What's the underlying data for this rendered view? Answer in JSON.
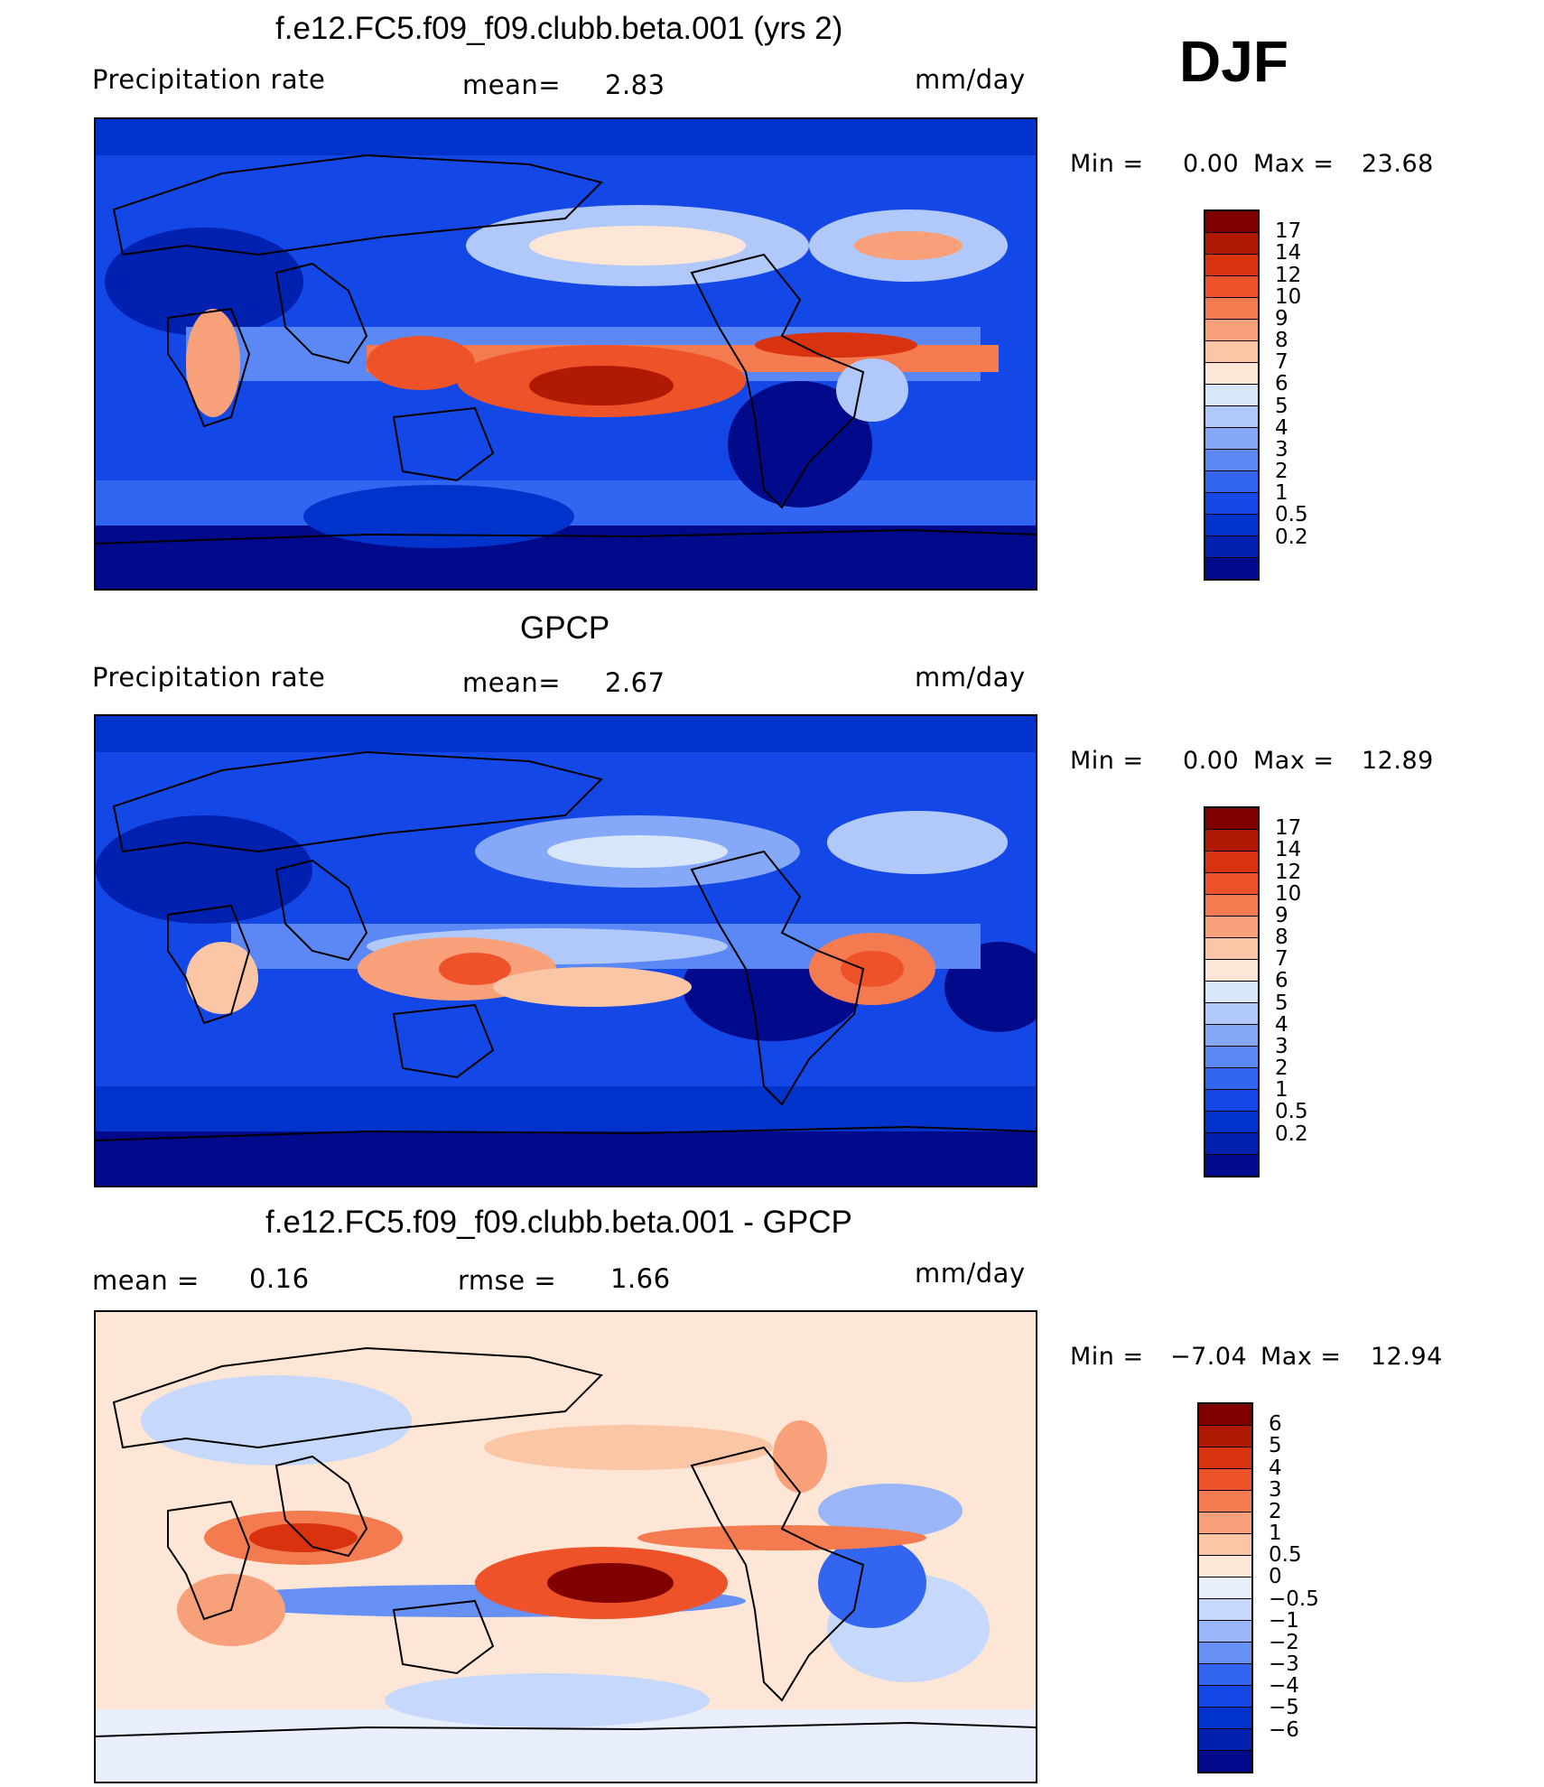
{
  "season": "DJF",
  "colors": {
    "precip": [
      "#000a8a",
      "#0020b0",
      "#0033cc",
      "#1448e6",
      "#3366f0",
      "#5c88f5",
      "#86a8f8",
      "#b0c8fa",
      "#d8e6fc",
      "#fde6d6",
      "#fbc6a6",
      "#f8a07a",
      "#f47a50",
      "#ee5228",
      "#d8320e",
      "#b01a04",
      "#800000"
    ],
    "diff": [
      "#000a8a",
      "#0020b0",
      "#0033cc",
      "#1448e6",
      "#3366f0",
      "#6690f4",
      "#9ab6f8",
      "#c6d8fb",
      "#e8eefc",
      "#fde6d6",
      "#fbc6a6",
      "#f8a07a",
      "#f47a50",
      "#ee5228",
      "#d8320e",
      "#b01a04",
      "#800000"
    ],
    "land_outline": "#000000"
  },
  "panels": [
    {
      "title": "f.e12.FC5.f09_f09.clubb.beta.001 (yrs 2)",
      "left_label": "Precipitation  rate",
      "mid_label": "mean=",
      "mid_value": "2.83",
      "units": "mm/day",
      "minmax": {
        "min_label": "Min  =",
        "min_value": "0.00",
        "max_label": "Max  =",
        "max_value": "23.68"
      },
      "colorbar_ticks": [
        "17",
        "14",
        "12",
        "10",
        "9",
        "8",
        "7",
        "6",
        "5",
        "4",
        "3",
        "2",
        "1",
        "0.5",
        "0.2"
      ]
    },
    {
      "title": "GPCP",
      "left_label": "Precipitation  rate",
      "mid_label": "mean=",
      "mid_value": "2.67",
      "units": "mm/day",
      "minmax": {
        "min_label": "Min  =",
        "min_value": "0.00",
        "max_label": "Max  =",
        "max_value": "12.89"
      },
      "colorbar_ticks": [
        "17",
        "14",
        "12",
        "10",
        "9",
        "8",
        "7",
        "6",
        "5",
        "4",
        "3",
        "2",
        "1",
        "0.5",
        "0.2"
      ]
    },
    {
      "title": "f.e12.FC5.f09_f09.clubb.beta.001 - GPCP",
      "left_label": "mean  =",
      "left_value": "0.16",
      "mid_label": "rmse  =",
      "mid_value": "1.66",
      "units": "mm/day",
      "minmax": {
        "min_label": "Min  =",
        "min_value": "−7.04",
        "max_label": "Max  =",
        "max_value": "12.94"
      },
      "colorbar_ticks": [
        "6",
        "5",
        "4",
        "3",
        "2",
        "1",
        "0.5",
        "0",
        "−0.5",
        "−1",
        "−2",
        "−3",
        "−4",
        "−5",
        "−6"
      ]
    }
  ]
}
